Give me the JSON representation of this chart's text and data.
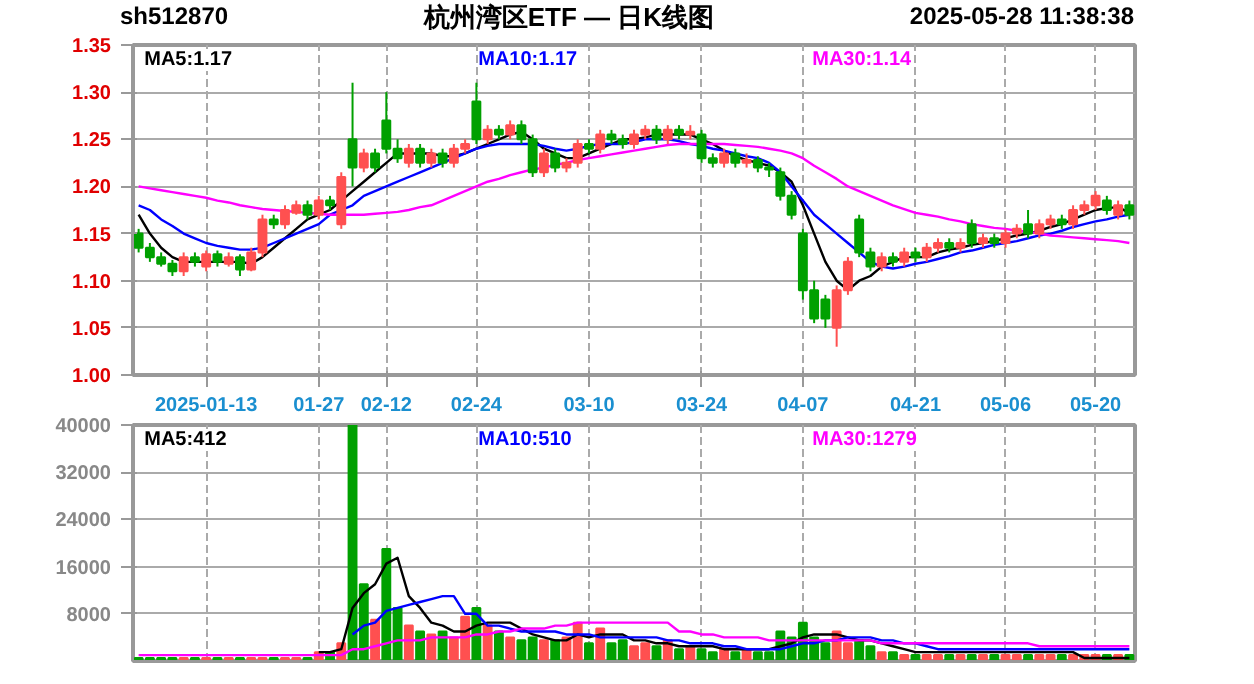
{
  "chart_data": [
    {
      "type": "candlestick",
      "title": "杭州湾区ETF — 日K线图",
      "annotations": [
        "sh512870",
        "2025-05-28 11:38:38"
      ],
      "categories": [
        null,
        null,
        null,
        null,
        null,
        null,
        "2025-01-13",
        null,
        null,
        null,
        null,
        null,
        null,
        null,
        null,
        null,
        "01-27",
        null,
        null,
        null,
        null,
        null,
        "02-12",
        null,
        null,
        null,
        null,
        null,
        null,
        null,
        "02-24",
        null,
        null,
        null,
        null,
        null,
        null,
        null,
        null,
        null,
        "03-10",
        null,
        null,
        null,
        null,
        null,
        null,
        null,
        null,
        null,
        "03-24",
        null,
        null,
        null,
        null,
        null,
        null,
        null,
        null,
        "04-07",
        null,
        null,
        null,
        null,
        null,
        null,
        null,
        null,
        null,
        "04-21",
        null,
        null,
        null,
        null,
        null,
        null,
        null,
        "05-06",
        null,
        null,
        null,
        null,
        null,
        null,
        null,
        "05-20",
        null,
        null,
        null
      ],
      "ohlc": [
        [
          1.15,
          1.155,
          1.13,
          1.135
        ],
        [
          1.135,
          1.14,
          1.12,
          1.125
        ],
        [
          1.125,
          1.13,
          1.115,
          1.118
        ],
        [
          1.118,
          1.122,
          1.105,
          1.11
        ],
        [
          1.11,
          1.13,
          1.105,
          1.125
        ],
        [
          1.125,
          1.13,
          1.115,
          1.12
        ],
        [
          1.115,
          1.132,
          1.11,
          1.128
        ],
        [
          1.128,
          1.132,
          1.115,
          1.12
        ],
        [
          1.118,
          1.13,
          1.115,
          1.125
        ],
        [
          1.125,
          1.128,
          1.105,
          1.112
        ],
        [
          1.112,
          1.135,
          1.11,
          1.13
        ],
        [
          1.13,
          1.17,
          1.125,
          1.165
        ],
        [
          1.165,
          1.17,
          1.155,
          1.16
        ],
        [
          1.16,
          1.18,
          1.155,
          1.175
        ],
        [
          1.172,
          1.185,
          1.17,
          1.18
        ],
        [
          1.18,
          1.185,
          1.165,
          1.17
        ],
        [
          1.17,
          1.19,
          1.165,
          1.185
        ],
        [
          1.185,
          1.19,
          1.175,
          1.18
        ],
        [
          1.16,
          1.215,
          1.155,
          1.21
        ],
        [
          1.25,
          1.31,
          1.2,
          1.22
        ],
        [
          1.22,
          1.24,
          1.215,
          1.235
        ],
        [
          1.235,
          1.24,
          1.215,
          1.22
        ],
        [
          1.27,
          1.3,
          1.235,
          1.24
        ],
        [
          1.24,
          1.25,
          1.225,
          1.23
        ],
        [
          1.225,
          1.245,
          1.22,
          1.24
        ],
        [
          1.24,
          1.245,
          1.22,
          1.225
        ],
        [
          1.225,
          1.24,
          1.22,
          1.235
        ],
        [
          1.235,
          1.24,
          1.22,
          1.225
        ],
        [
          1.225,
          1.245,
          1.22,
          1.24
        ],
        [
          1.24,
          1.25,
          1.235,
          1.245
        ],
        [
          1.29,
          1.31,
          1.245,
          1.25
        ],
        [
          1.25,
          1.265,
          1.245,
          1.26
        ],
        [
          1.26,
          1.265,
          1.25,
          1.255
        ],
        [
          1.255,
          1.27,
          1.25,
          1.265
        ],
        [
          1.265,
          1.27,
          1.245,
          1.25
        ],
        [
          1.25,
          1.255,
          1.21,
          1.215
        ],
        [
          1.215,
          1.24,
          1.21,
          1.235
        ],
        [
          1.235,
          1.24,
          1.215,
          1.22
        ],
        [
          1.22,
          1.23,
          1.215,
          1.225
        ],
        [
          1.225,
          1.25,
          1.22,
          1.245
        ],
        [
          1.245,
          1.25,
          1.235,
          1.24
        ],
        [
          1.24,
          1.26,
          1.235,
          1.255
        ],
        [
          1.255,
          1.26,
          1.245,
          1.25
        ],
        [
          1.25,
          1.255,
          1.24,
          1.245
        ],
        [
          1.245,
          1.26,
          1.24,
          1.255
        ],
        [
          1.255,
          1.265,
          1.25,
          1.26
        ],
        [
          1.26,
          1.265,
          1.245,
          1.25
        ],
        [
          1.25,
          1.265,
          1.245,
          1.26
        ],
        [
          1.26,
          1.265,
          1.25,
          1.255
        ],
        [
          1.255,
          1.265,
          1.25,
          1.258
        ],
        [
          1.255,
          1.26,
          1.225,
          1.23
        ],
        [
          1.23,
          1.235,
          1.22,
          1.225
        ],
        [
          1.225,
          1.24,
          1.22,
          1.235
        ],
        [
          1.235,
          1.24,
          1.22,
          1.225
        ],
        [
          1.225,
          1.235,
          1.22,
          1.228
        ],
        [
          1.228,
          1.232,
          1.215,
          1.22
        ],
        [
          1.22,
          1.225,
          1.21,
          1.218
        ],
        [
          1.215,
          1.22,
          1.185,
          1.19
        ],
        [
          1.19,
          1.195,
          1.165,
          1.17
        ],
        [
          1.15,
          1.155,
          1.08,
          1.09
        ],
        [
          1.09,
          1.1,
          1.055,
          1.06
        ],
        [
          1.08,
          1.085,
          1.05,
          1.06
        ],
        [
          1.05,
          1.095,
          1.03,
          1.09
        ],
        [
          1.09,
          1.125,
          1.085,
          1.12
        ],
        [
          1.165,
          1.17,
          1.125,
          1.13
        ],
        [
          1.13,
          1.135,
          1.11,
          1.115
        ],
        [
          1.115,
          1.13,
          1.11,
          1.125
        ],
        [
          1.125,
          1.13,
          1.115,
          1.12
        ],
        [
          1.12,
          1.135,
          1.115,
          1.13
        ],
        [
          1.13,
          1.135,
          1.12,
          1.125
        ],
        [
          1.125,
          1.14,
          1.12,
          1.135
        ],
        [
          1.135,
          1.145,
          1.13,
          1.14
        ],
        [
          1.14,
          1.145,
          1.13,
          1.135
        ],
        [
          1.135,
          1.145,
          1.13,
          1.14
        ],
        [
          1.16,
          1.165,
          1.135,
          1.14
        ],
        [
          1.14,
          1.15,
          1.135,
          1.145
        ],
        [
          1.145,
          1.15,
          1.135,
          1.14
        ],
        [
          1.14,
          1.155,
          1.135,
          1.15
        ],
        [
          1.15,
          1.16,
          1.145,
          1.155
        ],
        [
          1.16,
          1.175,
          1.145,
          1.15
        ],
        [
          1.15,
          1.165,
          1.145,
          1.16
        ],
        [
          1.16,
          1.17,
          1.155,
          1.165
        ],
        [
          1.165,
          1.17,
          1.155,
          1.16
        ],
        [
          1.16,
          1.18,
          1.155,
          1.175
        ],
        [
          1.175,
          1.185,
          1.17,
          1.18
        ],
        [
          1.18,
          1.195,
          1.175,
          1.19
        ],
        [
          1.185,
          1.19,
          1.17,
          1.175
        ],
        [
          1.17,
          1.185,
          1.165,
          1.18
        ],
        [
          1.18,
          1.185,
          1.165,
          1.17
        ]
      ],
      "series": [
        {
          "name": "MA5:1.17",
          "type": "line",
          "color": "#000000",
          "values": [
            1.17,
            1.15,
            1.135,
            1.125,
            1.12,
            1.12,
            1.12,
            1.12,
            1.12,
            1.12,
            1.118,
            1.125,
            1.135,
            1.145,
            1.155,
            1.165,
            1.17,
            1.175,
            1.185,
            1.195,
            1.205,
            1.215,
            1.225,
            1.235,
            1.235,
            1.235,
            1.235,
            1.232,
            1.232,
            1.235,
            1.24,
            1.245,
            1.25,
            1.255,
            1.258,
            1.25,
            1.24,
            1.235,
            1.23,
            1.23,
            1.235,
            1.24,
            1.245,
            1.25,
            1.25,
            1.252,
            1.255,
            1.255,
            1.255,
            1.255,
            1.25,
            1.245,
            1.238,
            1.232,
            1.228,
            1.225,
            1.222,
            1.215,
            1.205,
            1.18,
            1.15,
            1.12,
            1.1,
            1.09,
            1.1,
            1.105,
            1.115,
            1.12,
            1.125,
            1.125,
            1.125,
            1.13,
            1.133,
            1.135,
            1.138,
            1.14,
            1.142,
            1.145,
            1.148,
            1.15,
            1.153,
            1.157,
            1.16,
            1.165,
            1.17,
            1.175,
            1.177,
            1.178,
            1.172
          ]
        },
        {
          "name": "MA10:1.17",
          "type": "line",
          "color": "#0000ff",
          "values": [
            1.18,
            1.175,
            1.165,
            1.158,
            1.15,
            1.145,
            1.14,
            1.137,
            1.135,
            1.133,
            1.133,
            1.135,
            1.14,
            1.145,
            1.15,
            1.155,
            1.16,
            1.17,
            1.175,
            1.18,
            1.19,
            1.195,
            1.2,
            1.205,
            1.21,
            1.215,
            1.22,
            1.225,
            1.23,
            1.235,
            1.24,
            1.243,
            1.245,
            1.245,
            1.245,
            1.245,
            1.243,
            1.24,
            1.238,
            1.24,
            1.243,
            1.245,
            1.245,
            1.245,
            1.247,
            1.25,
            1.25,
            1.25,
            1.248,
            1.245,
            1.243,
            1.24,
            1.238,
            1.235,
            1.232,
            1.23,
            1.225,
            1.215,
            1.2,
            1.185,
            1.17,
            1.16,
            1.15,
            1.14,
            1.13,
            1.12,
            1.115,
            1.113,
            1.115,
            1.118,
            1.12,
            1.123,
            1.126,
            1.13,
            1.132,
            1.135,
            1.138,
            1.14,
            1.142,
            1.145,
            1.148,
            1.15,
            1.153,
            1.157,
            1.16,
            1.163,
            1.165,
            1.168,
            1.17
          ]
        },
        {
          "name": "MA30:1.14",
          "type": "line",
          "color": "#ff00ff",
          "values": [
            1.2,
            1.198,
            1.196,
            1.194,
            1.192,
            1.19,
            1.188,
            1.185,
            1.183,
            1.18,
            1.178,
            1.176,
            1.175,
            1.174,
            1.173,
            1.172,
            1.171,
            1.17,
            1.17,
            1.17,
            1.17,
            1.171,
            1.172,
            1.173,
            1.175,
            1.178,
            1.18,
            1.185,
            1.19,
            1.195,
            1.2,
            1.205,
            1.208,
            1.212,
            1.215,
            1.218,
            1.22,
            1.223,
            1.225,
            1.228,
            1.23,
            1.232,
            1.234,
            1.236,
            1.238,
            1.24,
            1.242,
            1.244,
            1.245,
            1.245,
            1.245,
            1.245,
            1.245,
            1.244,
            1.243,
            1.242,
            1.24,
            1.238,
            1.235,
            1.23,
            1.222,
            1.215,
            1.208,
            1.2,
            1.195,
            1.19,
            1.185,
            1.18,
            1.176,
            1.172,
            1.17,
            1.168,
            1.165,
            1.163,
            1.16,
            1.158,
            1.156,
            1.155,
            1.153,
            1.152,
            1.15,
            1.148,
            1.147,
            1.146,
            1.145,
            1.144,
            1.143,
            1.142,
            1.14
          ]
        }
      ],
      "ylim": [
        1.0,
        1.35
      ],
      "yticks": [
        {
          "value": 1.0,
          "label": "1.00"
        },
        1.05,
        {
          "value": 1.1,
          "label": "1.10"
        },
        1.15,
        {
          "value": 1.2,
          "label": "1.20"
        },
        1.25,
        {
          "value": 1.3,
          "label": "1.30"
        },
        1.35
      ],
      "grid": true,
      "legend": "top"
    },
    {
      "type": "bar",
      "categories": [
        null,
        null,
        null,
        null,
        null,
        null,
        null,
        null,
        null,
        null,
        null,
        null,
        null,
        null,
        null,
        null,
        null,
        null,
        null,
        null,
        null,
        null,
        null,
        null,
        null,
        null,
        null,
        null,
        null,
        null,
        null,
        null,
        null,
        null,
        null,
        null,
        null,
        null,
        null,
        null,
        null,
        null,
        null,
        null,
        null,
        null,
        null,
        null,
        null,
        null,
        null,
        null,
        null,
        null,
        null,
        null,
        null,
        null,
        null,
        null,
        null,
        null,
        null,
        null,
        null,
        null,
        null,
        null,
        null,
        null,
        null,
        null,
        null,
        null,
        null,
        null,
        null,
        null,
        null,
        null,
        null,
        null,
        null,
        null,
        null,
        null,
        null,
        null,
        null
      ],
      "series": [
        {
          "type": "bar",
          "values": [
            500,
            500,
            500,
            500,
            500,
            500,
            500,
            500,
            500,
            500,
            500,
            500,
            500,
            500,
            500,
            500,
            1500,
            1500,
            3000,
            40000,
            13000,
            7000,
            19000,
            9000,
            6000,
            5000,
            4500,
            5000,
            4000,
            7500,
            9000,
            6000,
            5000,
            4000,
            3500,
            4000,
            3500,
            3500,
            4000,
            6500,
            3000,
            5500,
            3000,
            3500,
            2500,
            3000,
            2500,
            3500,
            2000,
            2500,
            2000,
            1500,
            2000,
            1500,
            2000,
            1500,
            1500,
            5000,
            4000,
            6500,
            4000,
            3000,
            5000,
            3000,
            3500,
            2500,
            1500,
            1500,
            1000,
            1000,
            1000,
            1000,
            1000,
            1000,
            1000,
            1000,
            1000,
            1000,
            1000,
            1000,
            1000,
            1000,
            1000,
            1000,
            1000,
            1000,
            1000,
            1000,
            1000
          ],
          "colors": [
            "#00a000",
            "#00a000",
            "#00a000",
            "#00a000",
            "#ff5050",
            "#00a000",
            "#ff5050",
            "#00a000",
            "#ff5050",
            "#00a000",
            "#ff5050",
            "#ff5050",
            "#00a000",
            "#ff5050",
            "#ff5050",
            "#00a000",
            "#ff5050",
            "#00a000",
            "#ff5050",
            "#00a000",
            "#00a000",
            "#ff5050",
            "#00a000",
            "#00a000",
            "#ff5050",
            "#00a000",
            "#ff5050",
            "#00a000",
            "#ff5050",
            "#ff5050",
            "#00a000",
            "#ff5050",
            "#00a000",
            "#ff5050",
            "#00a000",
            "#00a000",
            "#ff5050",
            "#00a000",
            "#ff5050",
            "#ff5050",
            "#00a000",
            "#ff5050",
            "#00a000",
            "#00a000",
            "#ff5050",
            "#ff5050",
            "#00a000",
            "#ff5050",
            "#00a000",
            "#ff5050",
            "#00a000",
            "#00a000",
            "#ff5050",
            "#00a000",
            "#ff5050",
            "#00a000",
            "#00a000",
            "#00a000",
            "#00a000",
            "#00a000",
            "#00a000",
            "#00a000",
            "#ff5050",
            "#ff5050",
            "#00a000",
            "#00a000",
            "#ff5050",
            "#00a000",
            "#ff5050",
            "#00a000",
            "#ff5050",
            "#ff5050",
            "#00a000",
            "#ff5050",
            "#00a000",
            "#ff5050",
            "#00a000",
            "#ff5050",
            "#ff5050",
            "#00a000",
            "#ff5050",
            "#ff5050",
            "#00a000",
            "#ff5050",
            "#ff5050",
            "#ff5050",
            "#00a000",
            "#ff5050",
            "#00a000"
          ]
        },
        {
          "name": "MA5:412",
          "type": "line",
          "color": "#000000",
          "values": [
            null,
            null,
            null,
            null,
            null,
            null,
            null,
            null,
            null,
            null,
            null,
            null,
            null,
            null,
            null,
            null,
            1500,
            1500,
            2000,
            9000,
            11500,
            13000,
            16500,
            17500,
            11000,
            9000,
            6500,
            6000,
            5000,
            5000,
            6000,
            6500,
            6500,
            6500,
            5500,
            4500,
            4000,
            3500,
            3500,
            4500,
            4000,
            4500,
            4500,
            4500,
            3500,
            3500,
            3000,
            3000,
            2500,
            2500,
            2500,
            2500,
            2000,
            2000,
            2000,
            2000,
            2000,
            2500,
            3000,
            4000,
            4500,
            4500,
            4500,
            4000,
            3500,
            3500,
            3000,
            2500,
            2000,
            1500,
            1500,
            1500,
            1500,
            1500,
            1500,
            1500,
            1500,
            1500,
            1500,
            1500,
            1500,
            1500,
            1500,
            1500,
            500,
            500,
            500,
            500,
            500
          ]
        },
        {
          "name": "MA10:510",
          "type": "line",
          "color": "#0000ff",
          "values": [
            null,
            null,
            null,
            null,
            null,
            null,
            null,
            null,
            null,
            null,
            null,
            null,
            null,
            null,
            null,
            null,
            null,
            null,
            null,
            4500,
            6000,
            6500,
            8500,
            9000,
            9500,
            10000,
            10500,
            11000,
            11000,
            8000,
            8000,
            6000,
            6000,
            5500,
            5000,
            5000,
            5000,
            5000,
            4500,
            4500,
            4500,
            4000,
            4000,
            4000,
            4000,
            4000,
            4000,
            3500,
            3500,
            3000,
            3000,
            3000,
            2500,
            2500,
            2000,
            2000,
            2000,
            2000,
            2500,
            3000,
            3000,
            3500,
            3500,
            4000,
            4000,
            4000,
            3500,
            3500,
            3000,
            3000,
            2500,
            2000,
            2000,
            2000,
            2000,
            2000,
            2000,
            2000,
            2000,
            2000,
            2000,
            2000,
            2000,
            2000,
            2000,
            2000,
            2000,
            2000,
            2000
          ]
        },
        {
          "name": "MA30:1279",
          "type": "line",
          "color": "#ff00ff",
          "values": [
            1000,
            1000,
            1000,
            1000,
            1000,
            1000,
            1000,
            1000,
            1000,
            1000,
            1000,
            1000,
            1000,
            1000,
            1000,
            1000,
            1000,
            1000,
            1000,
            2000,
            2000,
            2500,
            3000,
            3500,
            3500,
            3500,
            4000,
            4000,
            4000,
            4000,
            4500,
            4500,
            5000,
            5000,
            5500,
            5500,
            5500,
            6000,
            6000,
            6500,
            6500,
            6500,
            6500,
            6500,
            6500,
            6500,
            6500,
            6500,
            5000,
            5000,
            4500,
            4500,
            4000,
            4000,
            4000,
            4000,
            3500,
            3500,
            3500,
            3500,
            3500,
            3500,
            3500,
            3500,
            3500,
            3500,
            3000,
            3000,
            3000,
            3000,
            3000,
            3000,
            3000,
            3000,
            3000,
            3000,
            3000,
            3000,
            3000,
            3000,
            2500,
            2500,
            2500,
            2500,
            2500,
            2500,
            2500,
            2500,
            2500
          ]
        }
      ],
      "ylim": [
        0,
        40000
      ],
      "yticks": [
        8000,
        16000,
        24000,
        32000,
        40000
      ],
      "grid": true,
      "legend": "top"
    }
  ]
}
